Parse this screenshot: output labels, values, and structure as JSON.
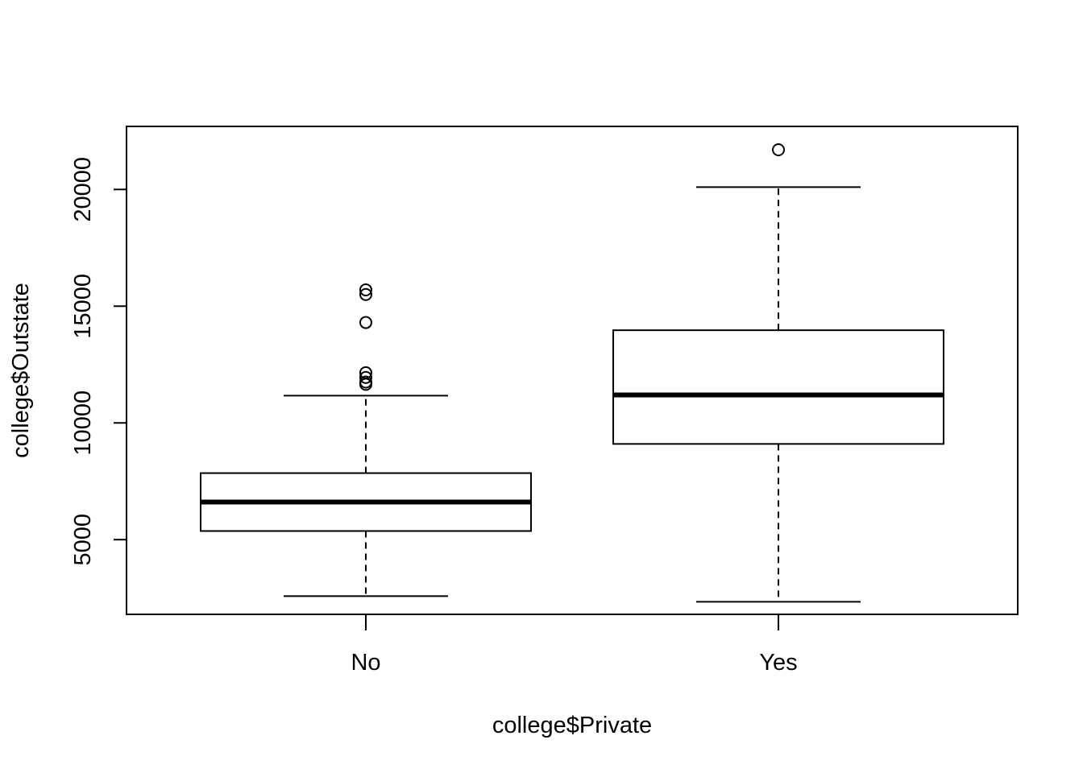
{
  "chart_data": {
    "type": "box",
    "title": "",
    "xlabel": "college$Private",
    "ylabel": "college$Outstate",
    "categories": [
      "No",
      "Yes"
    ],
    "ylim": [
      1800,
      22700
    ],
    "yticks": [
      5000,
      10000,
      15000,
      20000
    ],
    "grid": false,
    "boxes": [
      {
        "category": "No",
        "whisker_low": 2580,
        "q1": 5370,
        "median": 6610,
        "q3": 7850,
        "whisker_high": 11170,
        "outliers": [
          11650,
          11750,
          11950,
          12150,
          14300,
          15500,
          15700
        ]
      },
      {
        "category": "Yes",
        "whisker_low": 2340,
        "q1": 9100,
        "median": 11200,
        "q3": 13970,
        "whisker_high": 20100,
        "outliers": [
          21700
        ]
      }
    ]
  }
}
